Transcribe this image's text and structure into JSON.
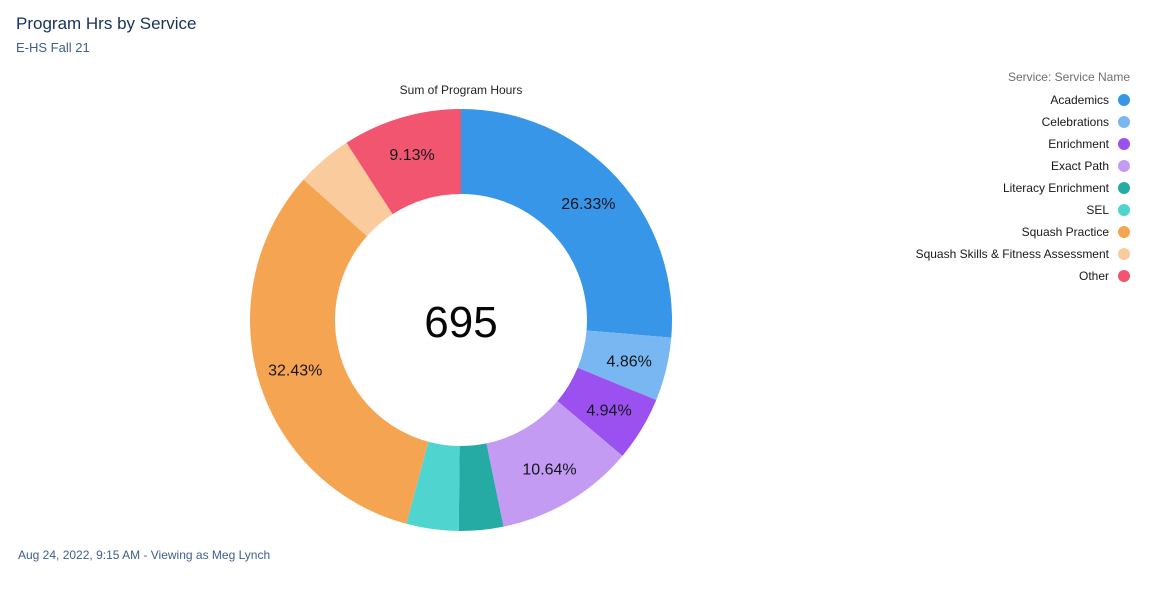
{
  "header": {
    "title": "Program Hrs by Service",
    "subtitle": "E-HS Fall 21"
  },
  "footer": {
    "timestamp_text": "Aug 24, 2022, 9:15 AM - Viewing as Meg Lynch"
  },
  "chart_data": {
    "type": "pie",
    "variant": "donut",
    "measure_label": "Sum of Program Hours",
    "total": "695",
    "legend_title": "Service: Service Name",
    "legend_position": "top-right",
    "slices": [
      {
        "name": "Academics",
        "percent": 26.33,
        "label": "26.33%",
        "color": "#3796e8"
      },
      {
        "name": "Celebrations",
        "percent": 4.86,
        "label": "4.86%",
        "color": "#78b7f1"
      },
      {
        "name": "Enrichment",
        "percent": 4.94,
        "label": "4.94%",
        "color": "#9b51ef"
      },
      {
        "name": "Exact Path",
        "percent": 10.64,
        "label": "10.64%",
        "color": "#c39bf3"
      },
      {
        "name": "Literacy Enrichment",
        "percent": 3.4,
        "label": "",
        "color": "#25aba3"
      },
      {
        "name": "SEL",
        "percent": 4.0,
        "label": "",
        "color": "#4fd4cf"
      },
      {
        "name": "Squash Practice",
        "percent": 32.43,
        "label": "32.43%",
        "color": "#f5a552"
      },
      {
        "name": "Squash Skills & Fitness Assessment",
        "percent": 4.27,
        "label": "",
        "color": "#facb9c"
      },
      {
        "name": "Other",
        "percent": 9.13,
        "label": "9.13%",
        "color": "#f2556f"
      }
    ]
  }
}
